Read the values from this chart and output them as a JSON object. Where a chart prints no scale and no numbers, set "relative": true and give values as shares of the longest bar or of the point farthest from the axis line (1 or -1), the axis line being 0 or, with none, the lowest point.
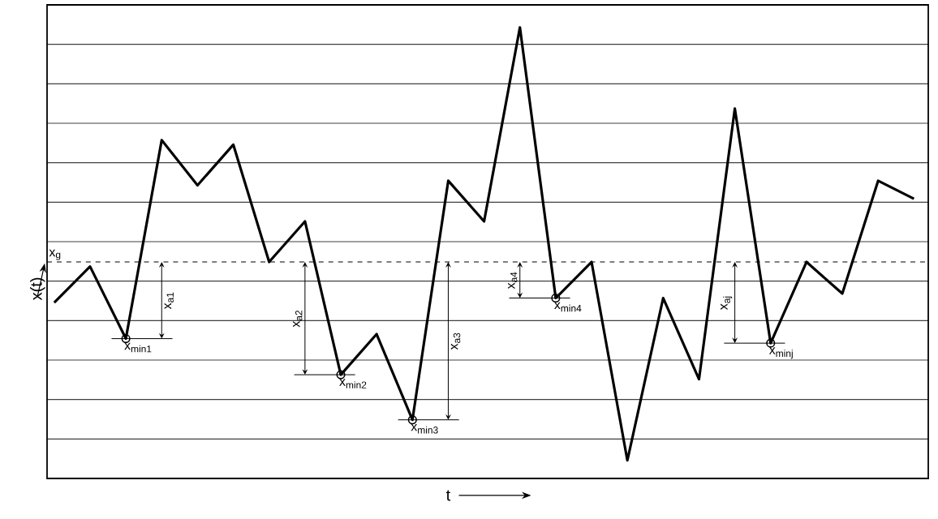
{
  "chart_data": {
    "type": "line",
    "relative": true,
    "xlabel": "t",
    "ylabel": "x(t)",
    "grid": "y",
    "categories": [
      null,
      null,
      null,
      null,
      null,
      null,
      null,
      null,
      null,
      null,
      null,
      null,
      null,
      null,
      null,
      null,
      null,
      null,
      null,
      null,
      null,
      null,
      null,
      null,
      null
    ],
    "series": [
      {
        "color": "#000000",
        "line_style": "solid",
        "values": [
          0.39,
          0.47,
          0.31,
          0.75,
          0.65,
          0.74,
          0.48,
          0.57,
          0.23,
          0.32,
          0.13,
          0.66,
          0.57,
          1.0,
          0.4,
          0.48,
          0.04,
          0.4,
          0.22,
          0.82,
          0.3,
          0.48,
          0.41,
          0.66,
          0.62
        ]
      }
    ],
    "ref_lines": [
      {
        "axis": "y",
        "value": 0.48,
        "label": "x$_{g}$",
        "line_style": "dashed",
        "color": "#000000"
      }
    ],
    "annotations": [
      "x$_{a1}$",
      {
        "text": "x$_{min1}$",
        "y": 0.31
      },
      "x$_{a2}$",
      {
        "text": "x$_{min2}$",
        "y": 0.23
      },
      "x$_{a3}$",
      {
        "text": "x$_{min3}$",
        "y": 0.13
      },
      "x$_{a4}$",
      {
        "text": "x$_{min4}$",
        "y": 0.4
      },
      "x$_{aj}$",
      {
        "text": "x$_{minj}$",
        "y": 0.3
      }
    ]
  }
}
